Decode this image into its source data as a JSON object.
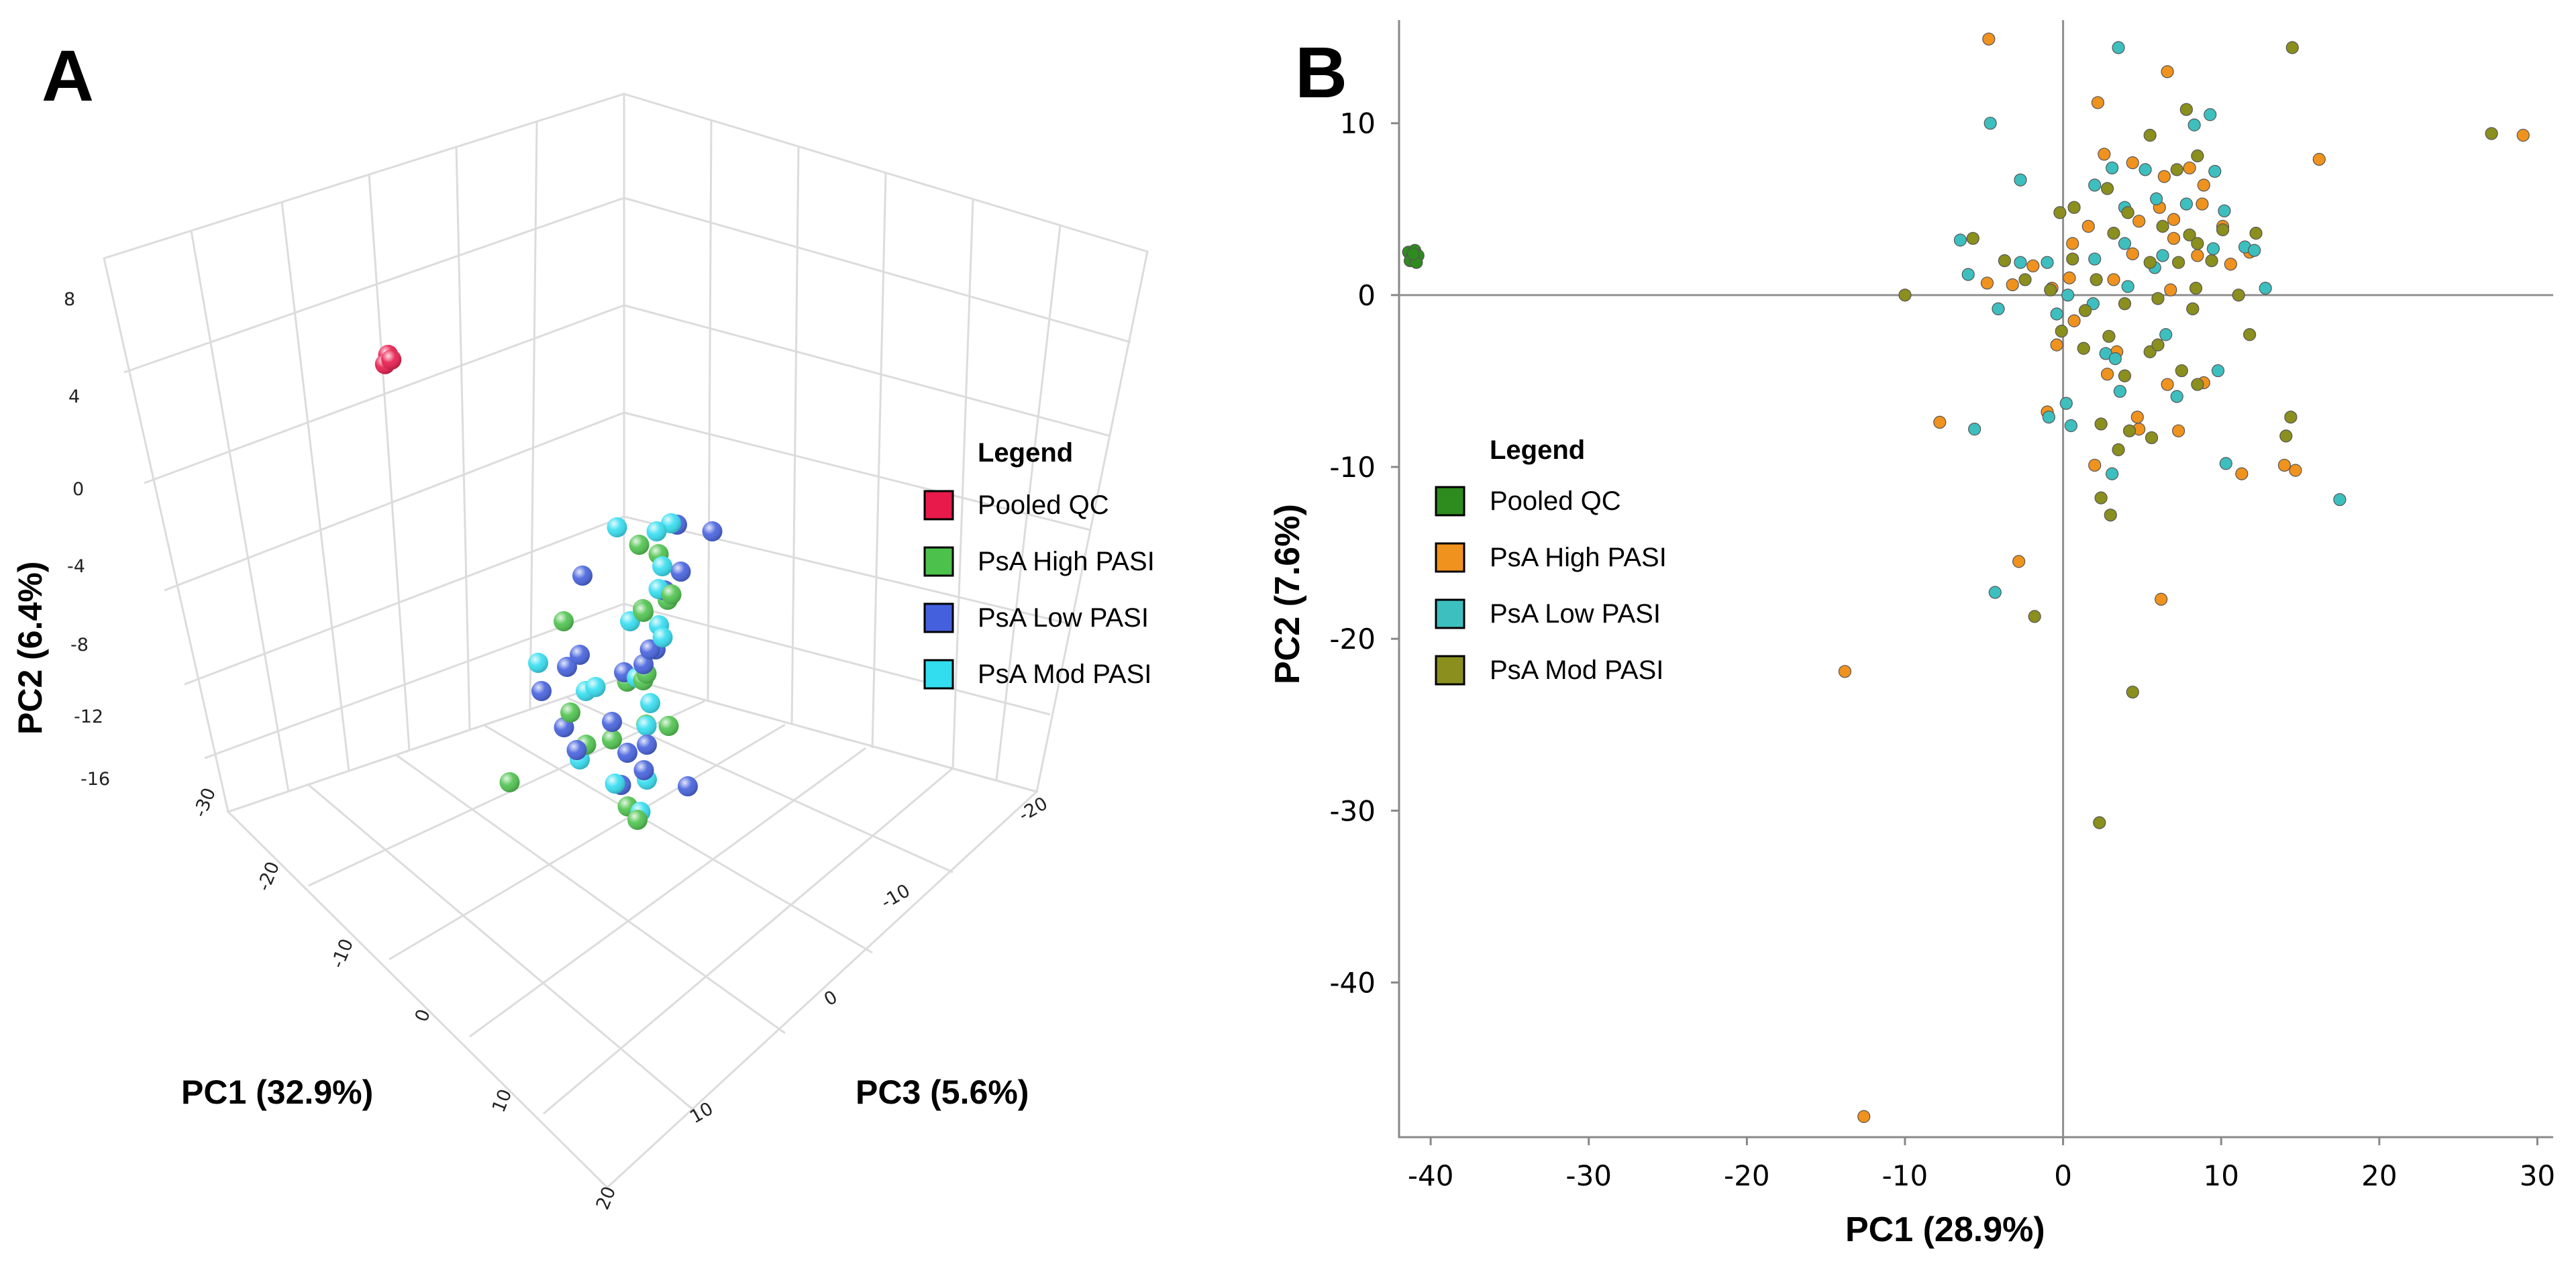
{
  "panel_a": {
    "label": "A",
    "chart_data": {
      "type": "scatter3d",
      "xlabel": "PC1 (32.9%)",
      "ylabel": "PC2 (6.4%)",
      "zlabel": "PC3 (5.6%)",
      "pc2_ticks": [
        "8",
        "4",
        "0",
        "-4",
        "-8",
        "-12",
        "-16"
      ],
      "pc1_ticks": [
        "-30",
        "-20",
        "-10",
        "0",
        "10",
        "20"
      ],
      "pc3_ticks": [
        "-20",
        "-10",
        "0",
        "10"
      ],
      "legend": {
        "title": "Legend",
        "items": [
          {
            "label": "Pooled QC",
            "color": "#e8194b"
          },
          {
            "label": "PsA High PASI",
            "color": "#4cc24c"
          },
          {
            "label": "PsA Low PASI",
            "color": "#4460dd"
          },
          {
            "label": "PsA Mod PASI",
            "color": "#33ddf0"
          }
        ]
      },
      "note": "3D PCA projection; points approximated in screen space",
      "series": [
        {
          "name": "Pooled QC",
          "points": [
            [
              -37,
              5.5,
              0
            ],
            [
              -37.2,
              5.0,
              0.2
            ],
            [
              -36.8,
              5.2,
              -0.2
            ]
          ]
        },
        {
          "name": "PsA High PASI",
          "points": [
            [
              -5,
              -2,
              -5
            ],
            [
              -2,
              -5,
              -6
            ],
            [
              4,
              -9,
              4
            ],
            [
              -8,
              -5,
              1
            ],
            [
              0,
              -4,
              -2
            ],
            [
              3,
              -7,
              0
            ],
            [
              5,
              -13,
              3
            ],
            [
              -3,
              -11,
              2
            ],
            [
              -15,
              -15,
              2
            ],
            [
              1,
              -1,
              -3
            ],
            [
              6,
              -2,
              2
            ],
            [
              7,
              -9,
              0
            ],
            [
              2,
              -10,
              -1
            ],
            [
              -4,
              -9,
              3
            ],
            [
              8,
              -13,
              4
            ],
            [
              -1,
              -8,
              -1
            ],
            [
              5,
              -6,
              1
            ],
            [
              3,
              -3,
              -3
            ]
          ]
        },
        {
          "name": "PsA Low PASI",
          "points": [
            [
              -2,
              -1,
              -7
            ],
            [
              5,
              0,
              -6
            ],
            [
              -8,
              -3,
              -1
            ],
            [
              4,
              -8,
              4
            ],
            [
              -10,
              -9,
              2
            ],
            [
              -3,
              -11,
              3
            ],
            [
              10,
              -12,
              0
            ],
            [
              2,
              -6,
              -2
            ],
            [
              -1,
              -4,
              -5
            ],
            [
              6,
              -5,
              2
            ],
            [
              -6,
              -7,
              2
            ],
            [
              8,
              -9,
              3
            ],
            [
              1,
              -13,
              1
            ],
            [
              3,
              -2,
              -4
            ],
            [
              -5,
              -10,
              3
            ],
            [
              7,
              -4,
              2
            ],
            [
              0,
              -7,
              0
            ],
            [
              -4,
              -6,
              2
            ],
            [
              9,
              -10,
              4
            ],
            [
              2,
              -11,
              1
            ]
          ]
        },
        {
          "name": "PsA Mod PASI",
          "points": [
            [
              0,
              0,
              -5
            ],
            [
              -7,
              -1,
              -4
            ],
            [
              6,
              0,
              0
            ],
            [
              -12,
              -8,
              1
            ],
            [
              9,
              -3,
              2
            ],
            [
              -2,
              -5,
              -2
            ],
            [
              5,
              -9,
              1
            ],
            [
              11,
              4,
              4
            ],
            [
              -4,
              -12,
              2
            ],
            [
              3,
              -12,
              3
            ],
            [
              7,
              -13,
              3
            ],
            [
              1,
              -3,
              -3
            ],
            [
              -6,
              -9,
              0
            ],
            [
              10,
              -6,
              4
            ],
            [
              4,
              -4,
              -1
            ],
            [
              -3,
              -8,
              1
            ],
            [
              2,
              -7,
              0
            ],
            [
              8,
              -11,
              3
            ]
          ]
        }
      ]
    }
  },
  "panel_b": {
    "label": "B",
    "chart_data": {
      "type": "scatter",
      "xlabel": "PC1 (28.9%)",
      "ylabel": "PC2 (7.6%)",
      "xlim": [
        -42,
        31
      ],
      "ylim": [
        -49,
        16
      ],
      "xticks": [
        -40,
        -30,
        -20,
        -10,
        0,
        10,
        20,
        30
      ],
      "yticks": [
        -40,
        -30,
        -20,
        -10,
        0,
        10
      ],
      "legend": {
        "title": "Legend",
        "items": [
          {
            "label": "Pooled QC",
            "color": "#2e8b1e"
          },
          {
            "label": "PsA High PASI",
            "color": "#f0921e"
          },
          {
            "label": "PsA Low PASI",
            "color": "#3dbfbf"
          },
          {
            "label": "PsA Mod PASI",
            "color": "#8a8f1e"
          }
        ]
      },
      "series": [
        {
          "name": "Pooled QC",
          "points": [
            [
              -41.4,
              2.5
            ],
            [
              -41.0,
              2.6
            ],
            [
              -41.2,
              2.2
            ],
            [
              -40.8,
              2.3
            ],
            [
              -41.3,
              2.0
            ],
            [
              -40.9,
              1.9
            ],
            [
              -41.1,
              2.4
            ]
          ]
        },
        {
          "name": "PsA High PASI",
          "points": [
            [
              -4.7,
              14.9
            ],
            [
              2.2,
              11.2
            ],
            [
              6.6,
              13.0
            ],
            [
              29.1,
              9.3
            ],
            [
              16.2,
              7.9
            ],
            [
              2.6,
              8.2
            ],
            [
              4.4,
              7.7
            ],
            [
              6.4,
              6.9
            ],
            [
              8.0,
              7.4
            ],
            [
              8.9,
              6.4
            ],
            [
              6.1,
              5.1
            ],
            [
              7.0,
              4.4
            ],
            [
              8.8,
              5.3
            ],
            [
              4.8,
              4.3
            ],
            [
              10.1,
              4.0
            ],
            [
              1.6,
              4.0
            ],
            [
              0.6,
              3.0
            ],
            [
              7.0,
              3.3
            ],
            [
              -1.9,
              1.7
            ],
            [
              4.4,
              2.4
            ],
            [
              11.8,
              2.5
            ],
            [
              10.6,
              1.8
            ],
            [
              8.5,
              2.3
            ],
            [
              0.4,
              1.0
            ],
            [
              3.2,
              0.9
            ],
            [
              -4.8,
              0.7
            ],
            [
              -3.2,
              0.6
            ],
            [
              6.8,
              0.3
            ],
            [
              -0.7,
              0.4
            ],
            [
              0.7,
              -1.5
            ],
            [
              -0.4,
              -2.9
            ],
            [
              3.4,
              -3.3
            ],
            [
              6.6,
              -5.2
            ],
            [
              2.8,
              -4.6
            ],
            [
              -1.0,
              -6.8
            ],
            [
              4.7,
              -7.1
            ],
            [
              -7.8,
              -7.4
            ],
            [
              4.8,
              -7.8
            ],
            [
              2.0,
              -9.9
            ],
            [
              11.3,
              -10.4
            ],
            [
              14.0,
              -9.9
            ],
            [
              14.7,
              -10.2
            ],
            [
              7.3,
              -7.9
            ],
            [
              8.9,
              -5.1
            ],
            [
              -2.8,
              -15.5
            ],
            [
              -13.8,
              -21.9
            ],
            [
              6.2,
              -17.7
            ],
            [
              -12.6,
              -47.8
            ]
          ]
        },
        {
          "name": "PsA Low PASI",
          "points": [
            [
              3.5,
              14.4
            ],
            [
              -4.6,
              10.0
            ],
            [
              9.3,
              10.5
            ],
            [
              8.3,
              9.9
            ],
            [
              3.1,
              7.4
            ],
            [
              5.2,
              7.3
            ],
            [
              -2.7,
              6.7
            ],
            [
              2.0,
              6.4
            ],
            [
              9.6,
              7.2
            ],
            [
              5.9,
              5.6
            ],
            [
              3.9,
              5.1
            ],
            [
              7.8,
              5.3
            ],
            [
              10.2,
              4.9
            ],
            [
              -6.5,
              3.2
            ],
            [
              3.9,
              3.0
            ],
            [
              6.3,
              2.3
            ],
            [
              9.5,
              2.7
            ],
            [
              11.5,
              2.8
            ],
            [
              12.1,
              2.6
            ],
            [
              -2.7,
              1.9
            ],
            [
              -6.0,
              1.2
            ],
            [
              2.0,
              2.1
            ],
            [
              5.8,
              1.6
            ],
            [
              -1.0,
              1.9
            ],
            [
              -4.1,
              -0.8
            ],
            [
              0.3,
              0.0
            ],
            [
              4.1,
              0.5
            ],
            [
              12.8,
              0.4
            ],
            [
              1.9,
              -0.5
            ],
            [
              -0.4,
              -1.1
            ],
            [
              6.5,
              -2.3
            ],
            [
              2.7,
              -3.4
            ],
            [
              3.3,
              -3.7
            ],
            [
              9.8,
              -4.4
            ],
            [
              7.2,
              -5.9
            ],
            [
              -5.6,
              -7.8
            ],
            [
              0.2,
              -6.3
            ],
            [
              3.6,
              -5.6
            ],
            [
              -0.9,
              -7.1
            ],
            [
              0.5,
              -7.6
            ],
            [
              10.3,
              -9.8
            ],
            [
              3.1,
              -10.4
            ],
            [
              17.5,
              -11.9
            ],
            [
              -4.3,
              -17.3
            ]
          ]
        },
        {
          "name": "PsA Mod PASI",
          "points": [
            [
              14.5,
              14.4
            ],
            [
              27.1,
              9.4
            ],
            [
              7.8,
              10.8
            ],
            [
              5.5,
              9.3
            ],
            [
              7.2,
              7.3
            ],
            [
              8.5,
              8.1
            ],
            [
              2.8,
              6.2
            ],
            [
              0.7,
              5.1
            ],
            [
              4.1,
              4.8
            ],
            [
              -0.2,
              4.8
            ],
            [
              10.1,
              3.8
            ],
            [
              12.2,
              3.6
            ],
            [
              -5.7,
              3.3
            ],
            [
              3.2,
              3.6
            ],
            [
              8.0,
              3.5
            ],
            [
              6.3,
              4.0
            ],
            [
              8.5,
              3.0
            ],
            [
              -3.7,
              2.0
            ],
            [
              0.6,
              2.1
            ],
            [
              5.5,
              1.9
            ],
            [
              9.4,
              2.0
            ],
            [
              7.3,
              1.9
            ],
            [
              -2.4,
              0.9
            ],
            [
              -10.0,
              0.0
            ],
            [
              -0.8,
              0.3
            ],
            [
              2.1,
              0.9
            ],
            [
              8.4,
              0.4
            ],
            [
              6.0,
              -0.2
            ],
            [
              11.1,
              0.0
            ],
            [
              8.2,
              -0.8
            ],
            [
              1.4,
              -0.9
            ],
            [
              3.9,
              -0.5
            ],
            [
              11.8,
              -2.3
            ],
            [
              2.9,
              -2.4
            ],
            [
              -0.1,
              -2.1
            ],
            [
              5.5,
              -3.3
            ],
            [
              8.5,
              -5.2
            ],
            [
              3.9,
              -4.7
            ],
            [
              7.5,
              -4.4
            ],
            [
              6.0,
              -2.9
            ],
            [
              1.3,
              -3.1
            ],
            [
              5.6,
              -8.3
            ],
            [
              2.4,
              -7.5
            ],
            [
              4.2,
              -7.9
            ],
            [
              3.5,
              -9.0
            ],
            [
              14.4,
              -7.1
            ],
            [
              14.1,
              -8.2
            ],
            [
              2.4,
              -11.8
            ],
            [
              3.0,
              -12.8
            ],
            [
              -1.8,
              -18.7
            ],
            [
              4.4,
              -23.1
            ],
            [
              2.3,
              -30.7
            ]
          ]
        }
      ]
    }
  }
}
